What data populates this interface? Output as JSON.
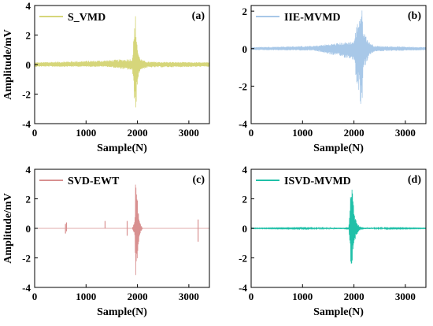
{
  "chart_data": [
    {
      "type": "line",
      "panel_label": "(a)",
      "xlabel": "Sample(N)",
      "ylabel": "Amplitude/mV",
      "xlim": [
        0,
        3400
      ],
      "ylim": [
        -4,
        4
      ],
      "xticks": [
        0,
        1000,
        2000,
        3000
      ],
      "yticks": [
        -4,
        -2,
        0,
        2,
        4
      ],
      "legend_placement": "top-left",
      "series": [
        {
          "name": "S_VMD",
          "color": "#d6d67a",
          "x": [
            0,
            1400,
            1900,
            1960,
            1970,
            1980,
            1990,
            2000,
            2010,
            2020,
            2040,
            2060,
            2100,
            2200,
            3400
          ],
          "envelope_max": [
            0.15,
            0.3,
            0.4,
            3.6,
            2.7,
            2.3,
            2.0,
            1.3,
            1.0,
            0.8,
            0.55,
            0.45,
            0.3,
            0.2,
            0.15
          ],
          "envelope_min": [
            -0.15,
            -0.15,
            -0.4,
            -3.5,
            -3.1,
            -2.3,
            -1.8,
            -1.5,
            -1.1,
            -0.9,
            -0.5,
            -0.4,
            -0.3,
            -0.2,
            -0.15
          ]
        }
      ]
    },
    {
      "type": "line",
      "panel_label": "(b)",
      "xlabel": "Sample(N)",
      "ylabel": "",
      "xlim": [
        0,
        3400
      ],
      "ylim": [
        -4,
        2.3
      ],
      "xticks": [
        0,
        1000,
        2000,
        3000
      ],
      "yticks": [
        -4,
        -2,
        0,
        2
      ],
      "legend_placement": "top-left",
      "series": [
        {
          "name": "IIE-MVMD",
          "color": "#a8c8e8",
          "x": [
            0,
            1200,
            2000,
            2050,
            2100,
            2150,
            2160,
            2170,
            2200,
            2250,
            2300,
            2400,
            3400
          ],
          "envelope_max": [
            0.08,
            0.15,
            0.4,
            1.2,
            1.8,
            2.2,
            2.0,
            1.4,
            0.9,
            0.6,
            0.35,
            0.15,
            0.08
          ],
          "envelope_min": [
            -0.08,
            -0.1,
            -0.6,
            -1.8,
            -2.3,
            -3.7,
            -2.8,
            -2.0,
            -1.2,
            -0.7,
            -0.4,
            -0.15,
            -0.08
          ]
        }
      ]
    },
    {
      "type": "line",
      "panel_label": "(c)",
      "xlabel": "Sample(N)",
      "ylabel": "Amplitude/mV",
      "xlim": [
        0,
        3400
      ],
      "ylim": [
        -4,
        4
      ],
      "xticks": [
        0,
        1000,
        2000,
        3000
      ],
      "yticks": [
        -4,
        -2,
        0,
        2,
        4
      ],
      "legend_placement": "top-left",
      "series": [
        {
          "name": "SVD-EWT",
          "color": "#d89090",
          "x": [
            0,
            1900,
            1950,
            1960,
            1970,
            1980,
            1990,
            2000,
            2020,
            2040,
            2060,
            2100,
            3400
          ],
          "envelope_max": [
            0,
            0,
            0.5,
            3.8,
            3.5,
            3.0,
            2.5,
            2.0,
            1.2,
            0.6,
            0.3,
            0,
            0
          ],
          "envelope_min": [
            0,
            0,
            -0.5,
            -3.6,
            -3.3,
            -2.8,
            -2.4,
            -1.9,
            -1.1,
            -0.6,
            -0.3,
            0,
            0
          ],
          "spikes": [
            {
              "x": 600,
              "min": -0.35,
              "max": 0.3
            },
            {
              "x": 620,
              "min": -0.2,
              "max": 0.4
            },
            {
              "x": 1370,
              "min": 0,
              "max": 0.5
            },
            {
              "x": 1800,
              "min": -0.5,
              "max": 0.5
            },
            {
              "x": 3180,
              "min": -0.9,
              "max": 0.6
            }
          ]
        }
      ]
    },
    {
      "type": "line",
      "panel_label": "(d)",
      "xlabel": "Sample(N)",
      "ylabel": "",
      "xlim": [
        0,
        3400
      ],
      "ylim": [
        -4,
        4
      ],
      "xticks": [
        0,
        1000,
        2000,
        3000
      ],
      "yticks": [
        -4,
        -2,
        0,
        2,
        4
      ],
      "legend_placement": "top-left",
      "series": [
        {
          "name": "ISVD-MVMD",
          "color": "#20c0a8",
          "x": [
            0,
            1800,
            1900,
            1950,
            1960,
            1970,
            1980,
            1990,
            2000,
            2020,
            2040,
            2070,
            2100,
            2200,
            3400
          ],
          "envelope_max": [
            0.02,
            0.05,
            0.1,
            3.7,
            3.3,
            2.6,
            2.0,
            1.7,
            1.3,
            0.9,
            0.6,
            0.35,
            0.15,
            0.05,
            0.02
          ],
          "envelope_min": [
            -0.02,
            -0.05,
            -0.1,
            -3.0,
            -2.6,
            -2.2,
            -1.8,
            -1.4,
            -1.1,
            -0.8,
            -0.6,
            -0.35,
            -0.15,
            -0.05,
            -0.02
          ]
        }
      ]
    }
  ]
}
